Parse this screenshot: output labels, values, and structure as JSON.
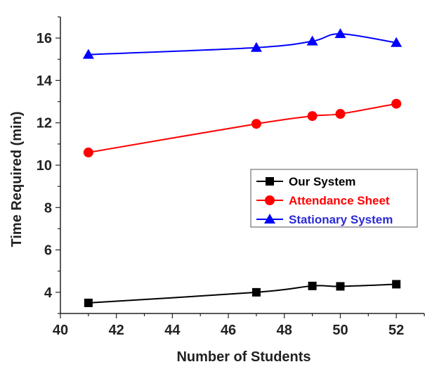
{
  "chart_data": {
    "type": "line",
    "xlabel": "Number of Students",
    "ylabel": "Time Required (min)",
    "xlim": [
      40,
      53
    ],
    "ylim": [
      3,
      17
    ],
    "x_ticks": [
      40,
      42,
      44,
      46,
      48,
      50,
      52
    ],
    "y_ticks": [
      4,
      6,
      8,
      10,
      12,
      14,
      16
    ],
    "legend_position": "right-middle",
    "grid": false,
    "x": [
      41,
      47,
      49,
      50,
      52
    ],
    "series": [
      {
        "name": "Our System",
        "color": "#000000",
        "marker": "square",
        "values": [
          3.5,
          4.0,
          4.3,
          4.28,
          4.38
        ]
      },
      {
        "name": "Attendance Sheet",
        "color": "#ff0000",
        "marker": "circle",
        "values": [
          10.6,
          11.95,
          12.32,
          12.42,
          12.9
        ]
      },
      {
        "name": "Stationary System",
        "color": "#0000ff",
        "marker": "triangle",
        "values": [
          15.22,
          15.55,
          15.85,
          16.2,
          15.78
        ]
      }
    ]
  }
}
